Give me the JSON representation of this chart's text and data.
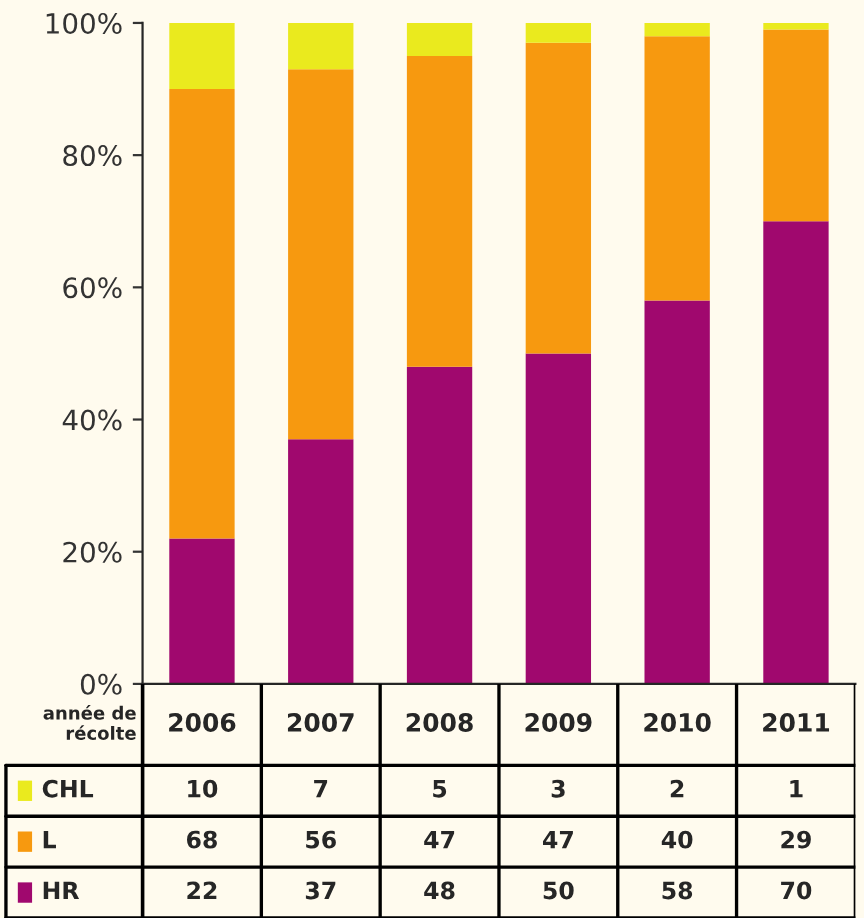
{
  "chart_data": {
    "type": "bar",
    "stacked": true,
    "xlabel": "année de récolte",
    "categories": [
      "2006",
      "2007",
      "2008",
      "2009",
      "2010",
      "2011"
    ],
    "series": [
      {
        "name": "HR",
        "color": "#a0086e",
        "values": [
          22,
          37,
          48,
          50,
          58,
          70
        ]
      },
      {
        "name": "L",
        "color": "#f7990f",
        "values": [
          68,
          56,
          47,
          47,
          40,
          29
        ]
      },
      {
        "name": "CHL",
        "color": "#eaea1e",
        "values": [
          10,
          7,
          5,
          3,
          2,
          1
        ]
      }
    ],
    "ylim": [
      0,
      100
    ],
    "yticks": [
      {
        "value": 0,
        "label": "0%"
      },
      {
        "value": 20,
        "label": "20%"
      },
      {
        "value": 40,
        "label": "40%"
      },
      {
        "value": 60,
        "label": "60%"
      },
      {
        "value": 80,
        "label": "80%"
      },
      {
        "value": 100,
        "label": "100%"
      }
    ],
    "tick_labels": "y",
    "data_labels": true,
    "grid": false,
    "legend": "bottom"
  }
}
